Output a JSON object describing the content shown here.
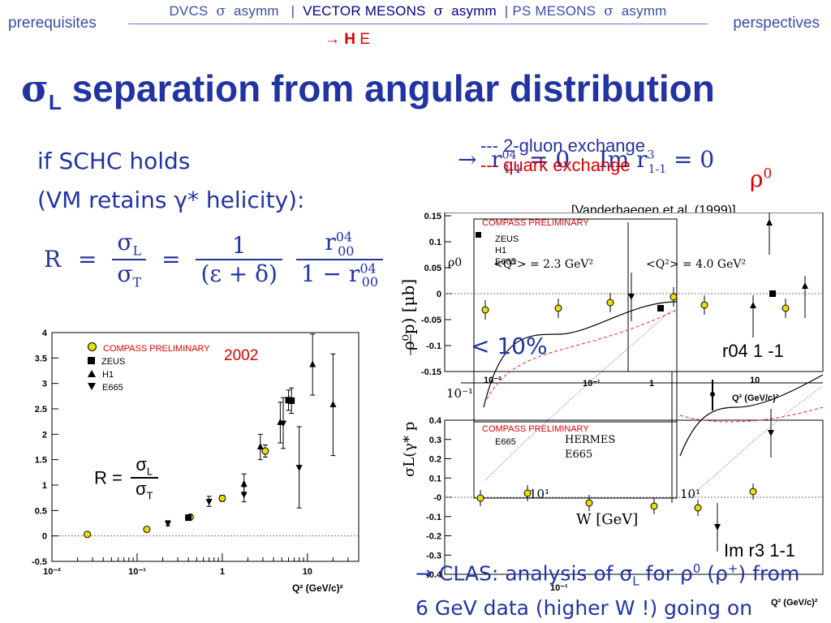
{
  "nav": {
    "left": "prerequisites",
    "right": "perspectives",
    "item1": "DVCS",
    "item1_sym": "σ",
    "item1_b": "asymm",
    "sep1": "|",
    "item2": "VECTOR MESONS",
    "item2_sym": "σ",
    "item2_b": "asymm",
    "sep2": "|",
    "item3": "PS MESONS",
    "item3_sym": "σ",
    "item3_b": "asymm",
    "sub_arrow": "→",
    "sub_h": "H",
    "sub_e": "E"
  },
  "title": {
    "sigma": "σ",
    "sub": "L",
    "rest": " separation from angular distribution"
  },
  "text": {
    "line1": "if SCHC holds",
    "line2": "(VM retains γ* helicity):"
  },
  "formula": {
    "R": "R",
    "sigma_L": "σ",
    "L": "L",
    "sigma_T": "σ",
    "T": "T",
    "one": "1",
    "den2": "(ε + δ)",
    "r": "r",
    "r_sup": "04",
    "r_sub": "00",
    "one_minus": "1 − r"
  },
  "right_header": {
    "arrow": "→",
    "r_text": "r",
    "r_sup": "04",
    "r_sub": "1-1",
    "eq0a": "= 0",
    "im": "Im r",
    "im_sup": "3",
    "im_sub": "1-1",
    "eq0b": "= 0",
    "legend1": "--- 2-gluon exchange",
    "legend2": "--- quark exchange",
    "rho0": "ρ",
    "rho0_sup": "0",
    "ref": "[Vanderhaegen et.al. (1999)]"
  },
  "left_chart_labels": {
    "compass": "COMPASS PRELIMINARY",
    "zeus": "ZEUS",
    "h1": "H1",
    "e665": "E665",
    "year": "2002",
    "R_label": "R =",
    "sigL": "σ",
    "L": "L",
    "sigT": "σ",
    "T": "T",
    "xaxis": "Q² (GeV/c)²"
  },
  "chart_data": [
    {
      "type": "scatter",
      "xscale": "log",
      "xlim": [
        0.01,
        40
      ],
      "ylim": [
        -0.5,
        4
      ],
      "xticks": [
        "10⁻²",
        "10⁻¹",
        "1",
        "10"
      ],
      "yticks": [
        "-0.5",
        "0",
        "0.5",
        "1",
        "1.5",
        "2",
        "2.5",
        "3",
        "3.5",
        "4"
      ],
      "xlabel": "Q² (GeV/c)²",
      "series": [
        {
          "name": "COMPASS PRELIMINARY",
          "color": "#e8e000",
          "x": [
            0.026,
            0.13,
            0.42,
            1.0,
            3.2
          ],
          "y": [
            0.03,
            0.13,
            0.37,
            0.74,
            1.67
          ],
          "err": [
            0.02,
            0.03,
            0.05,
            0.06,
            0.12
          ]
        },
        {
          "name": "ZEUS",
          "x": [
            0.4,
            6.0,
            6.5
          ],
          "y": [
            0.36,
            2.67,
            2.66
          ],
          "err": [
            0.05,
            0.2,
            0.25
          ]
        },
        {
          "name": "H1",
          "x": [
            1.8,
            2.8,
            4.8,
            11.5,
            20
          ],
          "y": [
            1.02,
            1.75,
            2.23,
            3.37,
            2.58
          ],
          "err": [
            0.2,
            0.25,
            0.4,
            0.6,
            1.0
          ]
        },
        {
          "name": "E665",
          "x": [
            0.23,
            0.7,
            1.8,
            5.2,
            8.0
          ],
          "y": [
            0.25,
            0.68,
            0.82,
            2.22,
            1.35
          ],
          "err": [
            0.05,
            0.1,
            0.15,
            0.5,
            0.8
          ]
        }
      ]
    },
    {
      "type": "scatter",
      "xscale": "log",
      "ylim": [
        -0.15,
        0.15
      ],
      "yticks": [
        "0.15",
        "0.1",
        "0.05",
        "0",
        "-0.05",
        "-0.1",
        "-0.15"
      ],
      "left_panel_label": "<Q²> = 2.3 GeV²",
      "right_panel_label": "<Q²> = 4.0 GeV²",
      "ylabel": "ρ⁰p) [μb]",
      "annotation": "< 10%",
      "r_label": "r",
      "r_sup": "04",
      "r_sub": "1 -1",
      "compass_legend": "COMPASS PRELIMINARY",
      "zeus_legend": "ZEUS",
      "h1_legend": "H1",
      "e665_legend": "E665",
      "x_left": "10⁻¹",
      "x_left_ticks": [
        "10⁻²",
        "10⁻¹"
      ],
      "x_right_ticks": [
        "1",
        "10"
      ],
      "x_right_label": "Q² (GeV/c)²",
      "points_compass": {
        "y": [
          -0.033,
          -0.028,
          -0.017,
          -0.015,
          -0.028
        ]
      },
      "points_other": {
        "y": [
          0.0,
          -0.025,
          -0.01,
          -0.052,
          -0.023,
          -0.02,
          0.005,
          0.015
        ]
      }
    },
    {
      "type": "scatter",
      "ylim": [
        -0.4,
        0.4
      ],
      "yticks": [
        "0.4",
        "0.3",
        "0.2",
        "0.1",
        "-0",
        "-0.1",
        "-0.2",
        "-0.3",
        "-0.4"
      ],
      "ylabel": "σL(γ* p",
      "xlabel": "W [GeV]",
      "x_ticks_left": [
        "10¹"
      ],
      "x_ticks_right": [
        "10¹"
      ],
      "hermes": "HERMES",
      "e665": "E665",
      "compass_legend": "COMPASS PRELIMINARY",
      "e665_legend": "E665",
      "im_label": "Im r",
      "im_sup": "3",
      "im_sub": "1-1",
      "x_bottom_label": "Q² (GeV/c)²",
      "x_bottom_ticks": [
        "10⁻¹"
      ]
    }
  ],
  "clas": {
    "line1a": "→ CLAS: analysis of σ",
    "line1_sub": "L",
    "line1b": " for ρ",
    "line1_sup": "0",
    "line1c": " (ρ",
    "line1_sup2": "+",
    "line1d": ") from",
    "line2": "6 GeV data (higher W !) going on"
  }
}
